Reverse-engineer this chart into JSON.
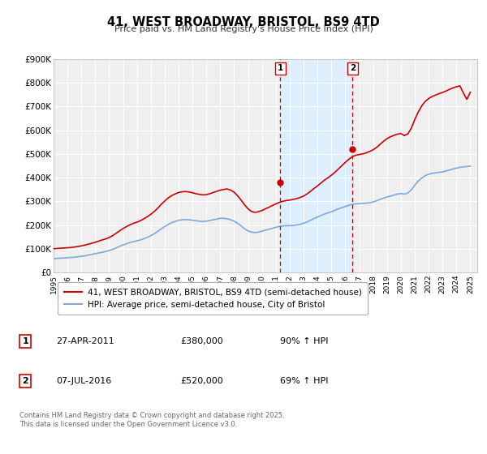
{
  "title": "41, WEST BROADWAY, BRISTOL, BS9 4TD",
  "subtitle": "Price paid vs. HM Land Registry's House Price Index (HPI)",
  "ylim": [
    0,
    900000
  ],
  "yticks": [
    0,
    100000,
    200000,
    300000,
    400000,
    500000,
    600000,
    700000,
    800000,
    900000
  ],
  "ytick_labels": [
    "£0",
    "£100K",
    "£200K",
    "£300K",
    "£400K",
    "£500K",
    "£600K",
    "£700K",
    "£800K",
    "£900K"
  ],
  "xlim_start": 1995.0,
  "xlim_end": 2025.5,
  "background_color": "#ffffff",
  "plot_bg_color": "#efefef",
  "grid_color": "#ffffff",
  "property_line_color": "#cc0000",
  "hpi_line_color": "#7aaadd",
  "sale1_x": 2011.32,
  "sale1_y": 380000,
  "sale2_x": 2016.52,
  "sale2_y": 520000,
  "vline_color": "#cc0000",
  "shade_color": "#ddeeff",
  "legend_label1": "41, WEST BROADWAY, BRISTOL, BS9 4TD (semi-detached house)",
  "legend_label2": "HPI: Average price, semi-detached house, City of Bristol",
  "annotation1_label": "1",
  "annotation1_date": "27-APR-2011",
  "annotation1_price": "£380,000",
  "annotation1_hpi": "90% ↑ HPI",
  "annotation2_label": "2",
  "annotation2_date": "07-JUL-2016",
  "annotation2_price": "£520,000",
  "annotation2_hpi": "69% ↑ HPI",
  "footer": "Contains HM Land Registry data © Crown copyright and database right 2025.\nThis data is licensed under the Open Government Licence v3.0.",
  "hpi_data_x": [
    1995.0,
    1995.25,
    1995.5,
    1995.75,
    1996.0,
    1996.25,
    1996.5,
    1996.75,
    1997.0,
    1997.25,
    1997.5,
    1997.75,
    1998.0,
    1998.25,
    1998.5,
    1998.75,
    1999.0,
    1999.25,
    1999.5,
    1999.75,
    2000.0,
    2000.25,
    2000.5,
    2000.75,
    2001.0,
    2001.25,
    2001.5,
    2001.75,
    2002.0,
    2002.25,
    2002.5,
    2002.75,
    2003.0,
    2003.25,
    2003.5,
    2003.75,
    2004.0,
    2004.25,
    2004.5,
    2004.75,
    2005.0,
    2005.25,
    2005.5,
    2005.75,
    2006.0,
    2006.25,
    2006.5,
    2006.75,
    2007.0,
    2007.25,
    2007.5,
    2007.75,
    2008.0,
    2008.25,
    2008.5,
    2008.75,
    2009.0,
    2009.25,
    2009.5,
    2009.75,
    2010.0,
    2010.25,
    2010.5,
    2010.75,
    2011.0,
    2011.25,
    2011.5,
    2011.75,
    2012.0,
    2012.25,
    2012.5,
    2012.75,
    2013.0,
    2013.25,
    2013.5,
    2013.75,
    2014.0,
    2014.25,
    2014.5,
    2014.75,
    2015.0,
    2015.25,
    2015.5,
    2015.75,
    2016.0,
    2016.25,
    2016.5,
    2016.75,
    2017.0,
    2017.25,
    2017.5,
    2017.75,
    2018.0,
    2018.25,
    2018.5,
    2018.75,
    2019.0,
    2019.25,
    2019.5,
    2019.75,
    2020.0,
    2020.25,
    2020.5,
    2020.75,
    2021.0,
    2021.25,
    2021.5,
    2021.75,
    2022.0,
    2022.25,
    2022.5,
    2022.75,
    2023.0,
    2023.25,
    2023.5,
    2023.75,
    2024.0,
    2024.25,
    2024.5,
    2024.75,
    2025.0
  ],
  "hpi_data_y": [
    58000,
    59000,
    60000,
    61000,
    62000,
    63000,
    64000,
    66000,
    68000,
    70000,
    73000,
    76000,
    79000,
    82000,
    85000,
    88000,
    92000,
    97000,
    103000,
    110000,
    116000,
    121000,
    126000,
    130000,
    133000,
    137000,
    142000,
    148000,
    155000,
    163000,
    173000,
    183000,
    193000,
    202000,
    210000,
    215000,
    220000,
    222000,
    223000,
    222000,
    220000,
    218000,
    216000,
    215000,
    216000,
    219000,
    222000,
    225000,
    228000,
    228000,
    226000,
    222000,
    216000,
    207000,
    196000,
    184000,
    175000,
    170000,
    168000,
    170000,
    174000,
    178000,
    182000,
    186000,
    190000,
    194000,
    196000,
    197000,
    197000,
    198000,
    200000,
    203000,
    207000,
    213000,
    220000,
    227000,
    234000,
    240000,
    246000,
    251000,
    256000,
    262000,
    268000,
    273000,
    278000,
    283000,
    287000,
    289000,
    290000,
    291000,
    292000,
    294000,
    297000,
    302000,
    308000,
    313000,
    318000,
    322000,
    326000,
    330000,
    333000,
    330000,
    335000,
    348000,
    368000,
    385000,
    398000,
    408000,
    414000,
    418000,
    420000,
    422000,
    424000,
    428000,
    432000,
    436000,
    440000,
    443000,
    445000,
    447000,
    448000
  ],
  "prop_data_x": [
    1995.0,
    1995.25,
    1995.5,
    1995.75,
    1996.0,
    1996.25,
    1996.5,
    1996.75,
    1997.0,
    1997.25,
    1997.5,
    1997.75,
    1998.0,
    1998.25,
    1998.5,
    1998.75,
    1999.0,
    1999.25,
    1999.5,
    1999.75,
    2000.0,
    2000.25,
    2000.5,
    2000.75,
    2001.0,
    2001.25,
    2001.5,
    2001.75,
    2002.0,
    2002.25,
    2002.5,
    2002.75,
    2003.0,
    2003.25,
    2003.5,
    2003.75,
    2004.0,
    2004.25,
    2004.5,
    2004.75,
    2005.0,
    2005.25,
    2005.5,
    2005.75,
    2006.0,
    2006.25,
    2006.5,
    2006.75,
    2007.0,
    2007.25,
    2007.5,
    2007.75,
    2008.0,
    2008.25,
    2008.5,
    2008.75,
    2009.0,
    2009.25,
    2009.5,
    2009.75,
    2010.0,
    2010.25,
    2010.5,
    2010.75,
    2011.0,
    2011.25,
    2011.5,
    2011.75,
    2012.0,
    2012.25,
    2012.5,
    2012.75,
    2013.0,
    2013.25,
    2013.5,
    2013.75,
    2014.0,
    2014.25,
    2014.5,
    2014.75,
    2015.0,
    2015.25,
    2015.5,
    2015.75,
    2016.0,
    2016.25,
    2016.5,
    2016.75,
    2017.0,
    2017.25,
    2017.5,
    2017.75,
    2018.0,
    2018.25,
    2018.5,
    2018.75,
    2019.0,
    2019.25,
    2019.5,
    2019.75,
    2020.0,
    2020.25,
    2020.5,
    2020.75,
    2021.0,
    2021.25,
    2021.5,
    2021.75,
    2022.0,
    2022.25,
    2022.5,
    2022.75,
    2023.0,
    2023.25,
    2023.5,
    2023.75,
    2024.0,
    2024.25,
    2024.5,
    2024.75,
    2025.0
  ],
  "prop_data_y": [
    100000,
    101000,
    102000,
    103000,
    104000,
    105000,
    107000,
    109000,
    112000,
    115000,
    119000,
    123000,
    127000,
    132000,
    137000,
    141000,
    147000,
    155000,
    165000,
    175000,
    185000,
    193000,
    201000,
    207000,
    212000,
    218000,
    226000,
    235000,
    245000,
    257000,
    271000,
    287000,
    301000,
    314000,
    324000,
    331000,
    337000,
    340000,
    341000,
    339000,
    336000,
    332000,
    329000,
    327000,
    328000,
    332000,
    337000,
    342000,
    347000,
    350000,
    352000,
    347000,
    338000,
    323000,
    305000,
    285000,
    268000,
    257000,
    253000,
    256000,
    261000,
    268000,
    275000,
    282000,
    289000,
    295000,
    300000,
    303000,
    305000,
    308000,
    311000,
    316000,
    322000,
    331000,
    342000,
    354000,
    365000,
    377000,
    389000,
    399000,
    410000,
    422000,
    436000,
    450000,
    464000,
    477000,
    488000,
    494000,
    497000,
    500000,
    504000,
    510000,
    517000,
    527000,
    540000,
    553000,
    564000,
    572000,
    578000,
    583000,
    586000,
    577000,
    584000,
    608000,
    645000,
    676000,
    702000,
    721000,
    733000,
    742000,
    748000,
    754000,
    759000,
    765000,
    772000,
    778000,
    783000,
    787000,
    757000,
    730000,
    760000
  ]
}
